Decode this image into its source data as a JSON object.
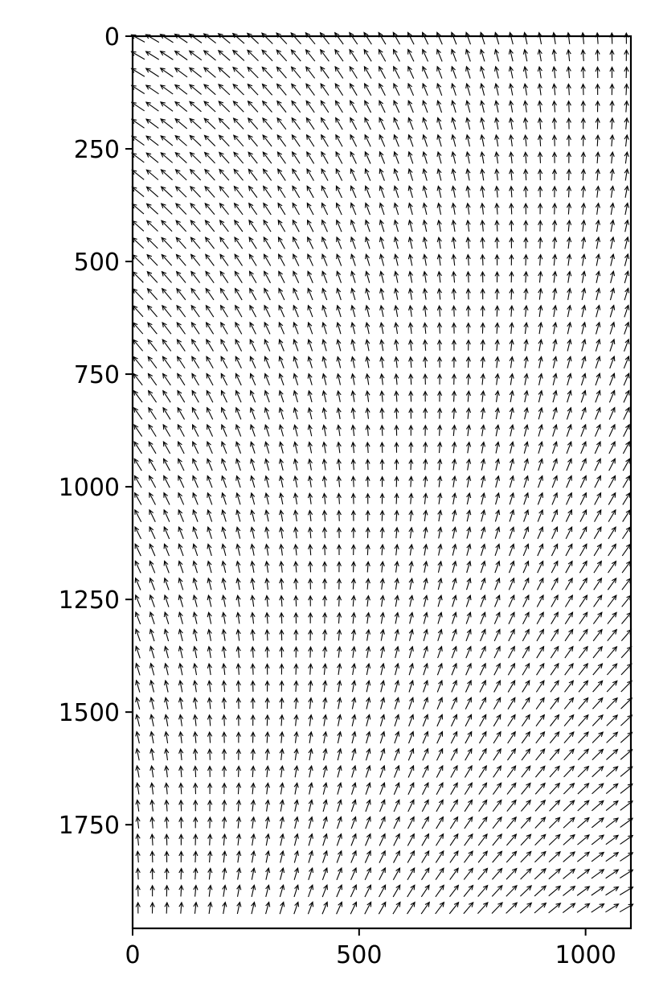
{
  "chart_data": {
    "type": "quiver",
    "title": "",
    "xlabel": "",
    "ylabel": "",
    "xlim": [
      0,
      1100
    ],
    "ylim": [
      1980,
      0
    ],
    "y_inverted": true,
    "x_ticks": [
      0,
      500,
      1000
    ],
    "y_ticks": [
      0,
      250,
      500,
      750,
      1000,
      1250,
      1500,
      1750
    ],
    "x_tick_labels": [
      "0",
      "500",
      "1000"
    ],
    "y_tick_labels": [
      "0",
      "250",
      "500",
      "750",
      "1000",
      "1250",
      "1500",
      "1750"
    ],
    "grid": false,
    "legend": "none",
    "arrow_color": "#000000",
    "field": {
      "x_start": 12,
      "x_end": 1090,
      "x_count": 35,
      "y_start": 5,
      "y_end": 1935,
      "y_count": 52,
      "direction_rule": "arrows point up-left near the top-left corner, straight up along a diagonal band, and up-right near the bottom-right corner",
      "magnitude_rule": "longest arrows at top-left and bottom-right corners, shortest along the middle band"
    }
  }
}
